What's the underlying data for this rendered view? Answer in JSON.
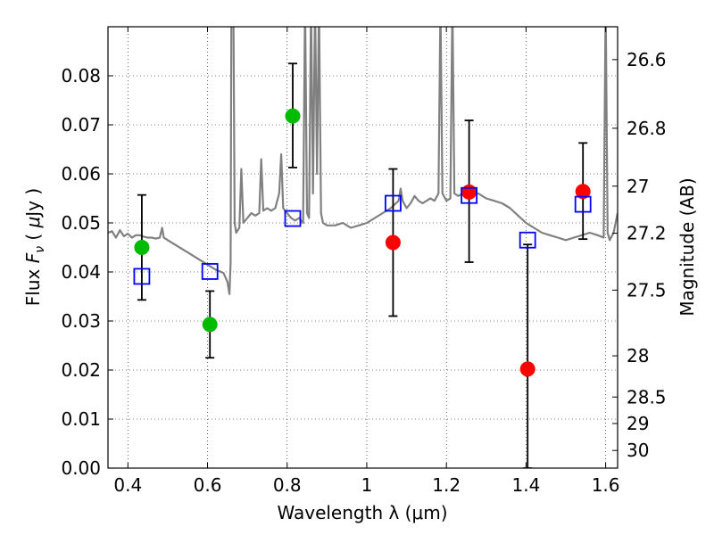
{
  "chart_data": {
    "type": "scatter",
    "xlabel": "Wavelength  λ (μm)",
    "ylabel": "Flux  F_ν  ( μJy )",
    "ylabel_right": "Magnitude (AB)",
    "xlim": [
      0.35,
      1.63
    ],
    "ylim": [
      0.0,
      0.09
    ],
    "grid": true,
    "x_ticks": [
      0.4,
      0.6,
      0.8,
      1.0,
      1.2,
      1.4,
      1.6
    ],
    "x_tick_labels": [
      "0.4",
      "0.6",
      "0.8",
      "1",
      "1.2",
      "1.4",
      "1.6"
    ],
    "y_ticks": [
      0.0,
      0.01,
      0.02,
      0.03,
      0.04,
      0.05,
      0.06,
      0.07,
      0.08
    ],
    "y_tick_labels": [
      "0.00",
      "0.01",
      "0.02",
      "0.03",
      "0.04",
      "0.05",
      "0.06",
      "0.07",
      "0.08"
    ],
    "right_axis": {
      "label": "Magnitude (AB)",
      "ticks": [
        {
          "label": "26.6",
          "flux": 0.0833
        },
        {
          "label": "26.8",
          "flux": 0.0693
        },
        {
          "label": "27",
          "flux": 0.0575
        },
        {
          "label": "27.2",
          "flux": 0.0479
        },
        {
          "label": "27.5",
          "flux": 0.0363
        },
        {
          "label": "28",
          "flux": 0.0229
        },
        {
          "label": "28.5",
          "flux": 0.0145
        },
        {
          "label": "29",
          "flux": 0.0091
        },
        {
          "label": "30",
          "flux": 0.0036
        }
      ]
    },
    "series": [
      {
        "marker": "circle",
        "color": "#00bb00",
        "points": [
          {
            "x": 0.435,
            "y": 0.045,
            "err_lo": 0.0343,
            "err_hi": 0.0557
          },
          {
            "x": 0.606,
            "y": 0.0293,
            "err_lo": 0.0225,
            "err_hi": 0.0361
          },
          {
            "x": 0.814,
            "y": 0.0718,
            "err_lo": 0.0613,
            "err_hi": 0.0825
          }
        ]
      },
      {
        "marker": "circle",
        "color": "#ff0000",
        "points": [
          {
            "x": 1.066,
            "y": 0.046,
            "err_lo": 0.031,
            "err_hi": 0.061
          },
          {
            "x": 1.257,
            "y": 0.0563,
            "err_lo": 0.042,
            "err_hi": 0.0709
          },
          {
            "x": 1.404,
            "y": 0.0202,
            "err_lo": 0.0,
            "err_hi": 0.0456
          },
          {
            "x": 1.543,
            "y": 0.0564,
            "err_lo": 0.0467,
            "err_hi": 0.0663
          }
        ]
      },
      {
        "marker": "open-square",
        "color": "#0000ff",
        "points": [
          {
            "x": 0.435,
            "y": 0.0391
          },
          {
            "x": 0.606,
            "y": 0.0401
          },
          {
            "x": 0.814,
            "y": 0.0509
          },
          {
            "x": 1.066,
            "y": 0.054
          },
          {
            "x": 1.257,
            "y": 0.0556
          },
          {
            "x": 1.404,
            "y": 0.0465
          },
          {
            "x": 1.543,
            "y": 0.0538
          }
        ]
      }
    ],
    "spectrum": {
      "color": "#808080",
      "points": [
        [
          0.35,
          0.048
        ],
        [
          0.36,
          0.0483
        ],
        [
          0.37,
          0.047
        ],
        [
          0.38,
          0.0485
        ],
        [
          0.39,
          0.0473
        ],
        [
          0.4,
          0.0478
        ],
        [
          0.41,
          0.047
        ],
        [
          0.42,
          0.0475
        ],
        [
          0.43,
          0.0475
        ],
        [
          0.44,
          0.0472
        ],
        [
          0.45,
          0.047
        ],
        [
          0.46,
          0.047
        ],
        [
          0.47,
          0.0468
        ],
        [
          0.48,
          0.047
        ],
        [
          0.486,
          0.049
        ],
        [
          0.49,
          0.047
        ],
        [
          0.5,
          0.0465
        ],
        [
          0.52,
          0.0455
        ],
        [
          0.54,
          0.0445
        ],
        [
          0.56,
          0.0435
        ],
        [
          0.58,
          0.0425
        ],
        [
          0.6,
          0.0415
        ],
        [
          0.62,
          0.0405
        ],
        [
          0.64,
          0.0398
        ],
        [
          0.65,
          0.038
        ],
        [
          0.655,
          0.0355
        ],
        [
          0.658,
          0.042
        ],
        [
          0.66,
          0.095
        ],
        [
          0.665,
          0.095
        ],
        [
          0.668,
          0.05
        ],
        [
          0.672,
          0.048
        ],
        [
          0.68,
          0.049
        ],
        [
          0.685,
          0.061
        ],
        [
          0.69,
          0.05
        ],
        [
          0.7,
          0.051
        ],
        [
          0.71,
          0.052
        ],
        [
          0.72,
          0.0515
        ],
        [
          0.73,
          0.052
        ],
        [
          0.735,
          0.063
        ],
        [
          0.74,
          0.0525
        ],
        [
          0.75,
          0.053
        ],
        [
          0.76,
          0.0525
        ],
        [
          0.77,
          0.053
        ],
        [
          0.78,
          0.056
        ],
        [
          0.785,
          0.064
        ],
        [
          0.79,
          0.053
        ],
        [
          0.8,
          0.052
        ],
        [
          0.81,
          0.051
        ],
        [
          0.82,
          0.0505
        ],
        [
          0.83,
          0.051
        ],
        [
          0.84,
          0.05
        ],
        [
          0.845,
          0.095
        ],
        [
          0.85,
          0.052
        ],
        [
          0.855,
          0.051
        ],
        [
          0.86,
          0.095
        ],
        [
          0.865,
          0.056
        ],
        [
          0.87,
          0.095
        ],
        [
          0.875,
          0.06
        ],
        [
          0.88,
          0.095
        ],
        [
          0.885,
          0.052
        ],
        [
          0.89,
          0.05
        ],
        [
          0.9,
          0.0495
        ],
        [
          0.92,
          0.0495
        ],
        [
          0.94,
          0.05
        ],
        [
          0.96,
          0.049
        ],
        [
          0.98,
          0.0495
        ],
        [
          1.0,
          0.05
        ],
        [
          1.02,
          0.051
        ],
        [
          1.04,
          0.052
        ],
        [
          1.06,
          0.053
        ],
        [
          1.08,
          0.0545
        ],
        [
          1.085,
          0.057
        ],
        [
          1.09,
          0.0545
        ],
        [
          1.1,
          0.053
        ],
        [
          1.11,
          0.054
        ],
        [
          1.12,
          0.0555
        ],
        [
          1.13,
          0.0545
        ],
        [
          1.14,
          0.054
        ],
        [
          1.15,
          0.0545
        ],
        [
          1.16,
          0.055
        ],
        [
          1.17,
          0.0545
        ],
        [
          1.18,
          0.056
        ],
        [
          1.185,
          0.095
        ],
        [
          1.19,
          0.056
        ],
        [
          1.2,
          0.0545
        ],
        [
          1.21,
          0.055
        ],
        [
          1.215,
          0.095
        ],
        [
          1.22,
          0.056
        ],
        [
          1.23,
          0.0555
        ],
        [
          1.24,
          0.056
        ],
        [
          1.26,
          0.056
        ],
        [
          1.28,
          0.056
        ],
        [
          1.3,
          0.055
        ],
        [
          1.32,
          0.0545
        ],
        [
          1.34,
          0.054
        ],
        [
          1.36,
          0.053
        ],
        [
          1.38,
          0.0515
        ],
        [
          1.4,
          0.05
        ],
        [
          1.42,
          0.049
        ],
        [
          1.44,
          0.048
        ],
        [
          1.46,
          0.0475
        ],
        [
          1.48,
          0.047
        ],
        [
          1.5,
          0.0465
        ],
        [
          1.52,
          0.047
        ],
        [
          1.54,
          0.0475
        ],
        [
          1.56,
          0.048
        ],
        [
          1.58,
          0.0475
        ],
        [
          1.595,
          0.047
        ],
        [
          1.6,
          0.095
        ],
        [
          1.605,
          0.048
        ],
        [
          1.61,
          0.0465
        ],
        [
          1.62,
          0.048
        ],
        [
          1.63,
          0.052
        ]
      ]
    }
  }
}
